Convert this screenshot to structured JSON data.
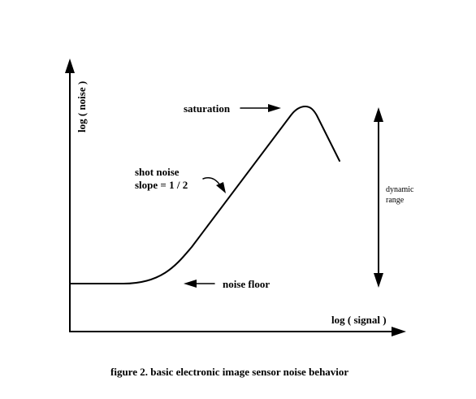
{
  "axes": {
    "y_label": "log ( noise )",
    "x_label": "log ( signal )"
  },
  "annotations": {
    "saturation": "saturation",
    "shot_noise_line1": "shot noise",
    "shot_noise_line2": "slope = 1 / 2",
    "noise_floor": "noise floor",
    "dynamic_line1": "dynamic",
    "dynamic_line2": "range"
  },
  "caption": "figure 2. basic electronic image sensor noise behavior",
  "colors": {
    "ink": "#000000",
    "background": "#ffffff"
  }
}
